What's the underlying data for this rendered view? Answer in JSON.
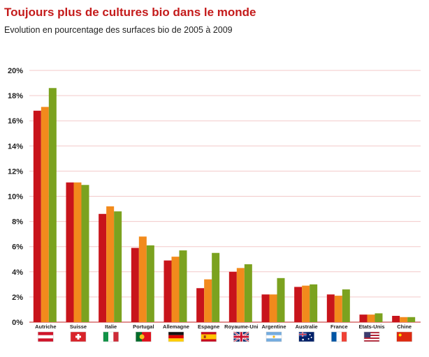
{
  "chart_data": {
    "type": "bar",
    "title": "Toujours plus de cultures bio dans le monde",
    "subtitle": "Evolution en pourcentage des surfaces bio de 2005 à 2009",
    "xlabel": "",
    "ylabel": "",
    "ylim": [
      0,
      20
    ],
    "yticks": [
      "0%",
      "2%",
      "4%",
      "6%",
      "8%",
      "10%",
      "12%",
      "14%",
      "16%",
      "18%",
      "20%"
    ],
    "grid": true,
    "categories": [
      "Autriche",
      "Suisse",
      "Italie",
      "Portugal",
      "Allemagne",
      "Espagne",
      "Royaume-Uni",
      "Argentine",
      "Australie",
      "France",
      "Etats-Unis",
      "Chine"
    ],
    "series": [
      {
        "color": "#c8141b",
        "values": [
          16.8,
          11.1,
          8.6,
          5.9,
          4.9,
          2.7,
          4.0,
          2.2,
          2.8,
          2.2,
          0.6,
          0.5
        ]
      },
      {
        "color": "#f28a1c",
        "values": [
          17.1,
          11.1,
          9.2,
          6.8,
          5.2,
          3.4,
          4.3,
          2.2,
          2.9,
          2.1,
          0.6,
          0.4
        ]
      },
      {
        "color": "#7ba21f",
        "values": [
          18.6,
          10.9,
          8.8,
          6.1,
          5.7,
          5.5,
          4.6,
          3.5,
          3.0,
          2.6,
          0.7,
          0.4
        ]
      }
    ],
    "flags": [
      "austria-flag",
      "switzerland-flag",
      "italy-flag",
      "portugal-flag",
      "germany-flag",
      "spain-flag",
      "united-kingdom-flag",
      "argentina-flag",
      "australia-flag",
      "france-flag",
      "united-states-flag",
      "china-flag"
    ],
    "colors": {
      "title": "#c41b1b",
      "grid": "#f3c9c9",
      "axis": "#d76a6a"
    }
  }
}
